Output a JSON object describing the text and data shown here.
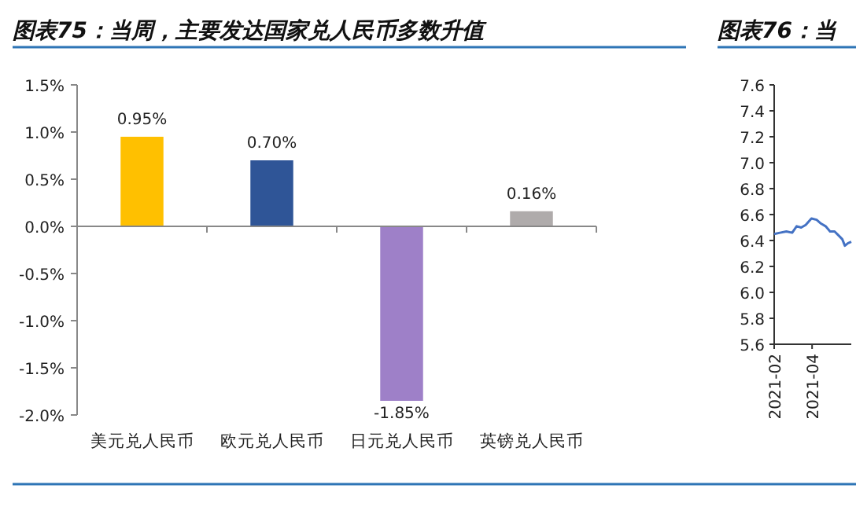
{
  "chart_data": [
    {
      "type": "bar",
      "title": "图表75：当周，主要发达国家兑人民币多数升值",
      "categories": [
        "美元兑人民币",
        "欧元兑人民币",
        "日元兑人民币",
        "英镑兑人民币"
      ],
      "values": [
        0.95,
        0.7,
        -1.85,
        0.16
      ],
      "colors": [
        "#ffc000",
        "#2f5597",
        "#9e80c8",
        "#afabab"
      ],
      "value_labels": [
        "0.95%",
        "0.70%",
        "-1.85%",
        "0.16%"
      ],
      "ylim": [
        -2.0,
        1.5
      ],
      "yticks": [
        {
          "value": 1.5,
          "label": "1.5%"
        },
        {
          "value": 1.0,
          "label": "1.0%"
        },
        {
          "value": 0.5,
          "label": "0.5%"
        },
        {
          "value": 0.0,
          "label": "0.0%"
        },
        {
          "value": -0.5,
          "label": "-0.5%"
        },
        {
          "value": -1.0,
          "label": "-1.0%"
        },
        {
          "value": -1.5,
          "label": "-1.5%"
        },
        {
          "value": -2.0,
          "label": "-2.0%"
        }
      ]
    },
    {
      "type": "line",
      "title": "图表76：当",
      "x": [
        "2021-02-01",
        "2021-02-10",
        "2021-02-20",
        "2021-03-01",
        "2021-03-08",
        "2021-03-15",
        "2021-03-22",
        "2021-03-31",
        "2021-04-08",
        "2021-04-15",
        "2021-04-22",
        "2021-04-29",
        "2021-05-06",
        "2021-05-12",
        "2021-05-18",
        "2021-05-22",
        "2021-05-27",
        "2021-06-01"
      ],
      "series": [
        {
          "color": "#4472c4",
          "values": [
            6.45,
            6.46,
            6.47,
            6.46,
            6.51,
            6.5,
            6.52,
            6.57,
            6.56,
            6.53,
            6.51,
            6.47,
            6.47,
            6.44,
            6.41,
            6.36,
            6.38,
            6.39
          ]
        }
      ],
      "xlim": [
        "2021-02-01",
        "2021-06-01"
      ],
      "xticks": [
        {
          "value": "2021-02-01",
          "label": "2021-02"
        },
        {
          "value": "2021-04-01",
          "label": "2021-04"
        }
      ],
      "ylim": [
        5.6,
        7.6
      ],
      "yticks": [
        {
          "value": 7.6,
          "label": "7.6"
        },
        {
          "value": 7.4,
          "label": "7.4"
        },
        {
          "value": 7.2,
          "label": "7.2"
        },
        {
          "value": 7.0,
          "label": "7.0"
        },
        {
          "value": 6.8,
          "label": "6.8"
        },
        {
          "value": 6.6,
          "label": "6.6"
        },
        {
          "value": 6.4,
          "label": "6.4"
        },
        {
          "value": 6.2,
          "label": "6.2"
        },
        {
          "value": 6.0,
          "label": "6.0"
        },
        {
          "value": 5.8,
          "label": "5.8"
        },
        {
          "value": 5.6,
          "label": "5.6"
        }
      ],
      "marker": "none",
      "line_style": "solid"
    }
  ]
}
